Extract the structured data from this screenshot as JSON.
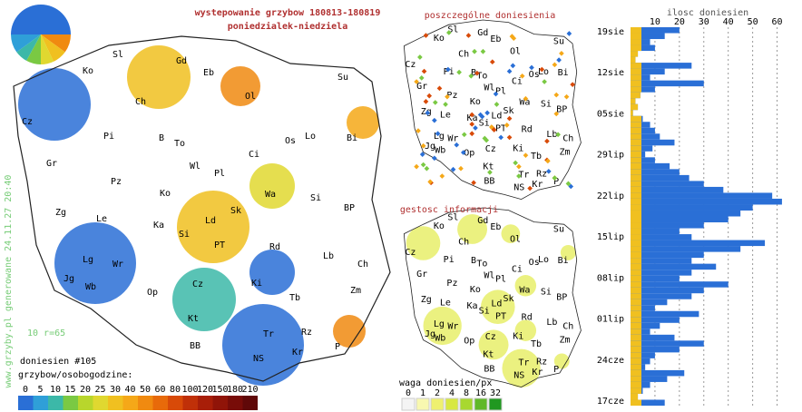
{
  "title": "wystepowanie grzybow 180813-180819",
  "subtitle": "poniedzialek-niedziela",
  "map2_title": "poszczególne doniesienia",
  "map3_title": "gestosc informacji",
  "side_note": "www.grzyby.pl generowane 24.11.27 20:40",
  "scale_note": "10 r=65",
  "count_label": "doniesien #105",
  "legend_title": "grzybow/osobogodzine:",
  "legend_values": [
    0,
    5,
    10,
    15,
    20,
    25,
    30,
    40,
    50,
    60,
    80,
    100,
    120,
    150,
    180,
    210
  ],
  "legend_colors": [
    "#2a6fd6",
    "#2f9fd8",
    "#3cb8a8",
    "#7ac943",
    "#b8d62c",
    "#e0d830",
    "#f0c020",
    "#f5a818",
    "#f08a10",
    "#e86a0a",
    "#d84a08",
    "#c03008",
    "#a81e08",
    "#901408",
    "#780c08",
    "#600808"
  ],
  "weight_title": "waga doniesien/px",
  "weight_values": [
    0,
    1,
    2,
    4,
    8,
    16,
    32
  ],
  "weight_colors": [
    "#f4f4f4",
    "#f8f8b0",
    "#eef070",
    "#d8e840",
    "#a8d830",
    "#60b828",
    "#209820"
  ],
  "cities": [
    "Sl",
    "Gd",
    "Ko",
    "Eb",
    "Su",
    "Ch",
    "Ol",
    "Cz",
    "Pi",
    "B",
    "To",
    "Os",
    "Lo",
    "Bi",
    "Gr",
    "Wl",
    "Pl",
    "Ci",
    "Pz",
    "Ko",
    "Wa",
    "Si",
    "Zg",
    "Le",
    "Ka",
    "Ld",
    "Sk",
    "BP",
    "Si",
    "PT",
    "Rd",
    "Lb",
    "Lg",
    "Wr",
    "Ch",
    "Jg",
    "Wb",
    "Op",
    "Cz",
    "Ki",
    "Zm",
    "Tb",
    "Kt",
    "Rz",
    "Tr",
    "P",
    "BB",
    "NS",
    "Kr"
  ],
  "chart_data": {
    "type": "bar",
    "title": "ilosc doniesien",
    "xlim": [
      0,
      65
    ],
    "xticks": [
      10,
      20,
      30,
      40,
      50,
      60
    ],
    "date_labels": [
      "19sie",
      "12sie",
      "05sie",
      "29lip",
      "22lip",
      "15lip",
      "08lip",
      "01lip",
      "24cze",
      "17cze"
    ],
    "values": [
      20,
      14,
      8,
      10,
      3,
      2,
      25,
      14,
      8,
      30,
      10,
      4,
      2,
      3,
      1,
      5,
      8,
      10,
      12,
      18,
      9,
      6,
      10,
      16,
      20,
      24,
      30,
      38,
      58,
      62,
      50,
      45,
      40,
      30,
      20,
      25,
      55,
      45,
      30,
      25,
      35,
      25,
      20,
      40,
      30,
      25,
      15,
      10,
      28,
      20,
      12,
      8,
      18,
      30,
      20,
      10,
      8,
      6,
      22,
      15,
      8,
      5,
      3,
      14
    ],
    "color": "#2a6fd6"
  }
}
